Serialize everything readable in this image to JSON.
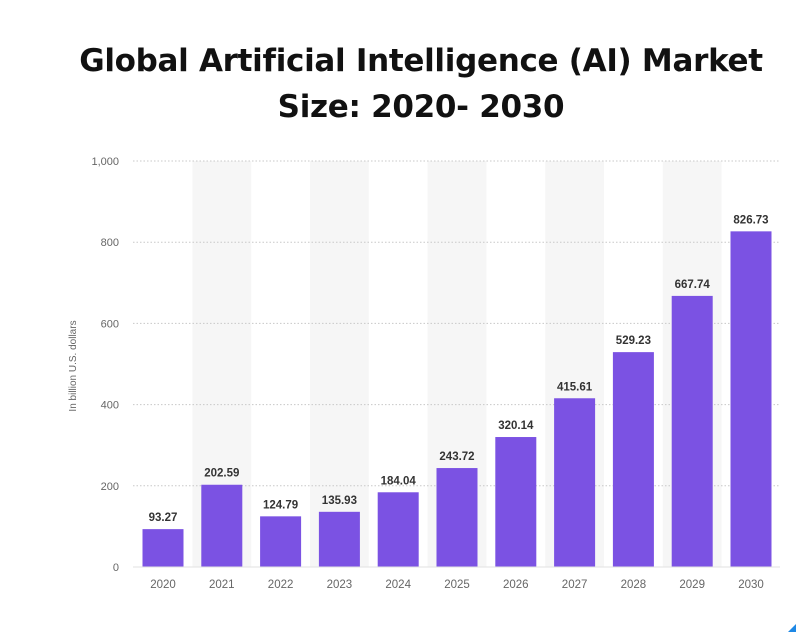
{
  "chart_data": {
    "type": "bar",
    "title_lines": [
      "Global Artificial Intelligence (AI) Market",
      "Size: 2020- 2030"
    ],
    "ylabel": "In billion U.S. dollars",
    "xlabel": "",
    "ylim": [
      0,
      1000
    ],
    "y_ticks": [
      0,
      200,
      400,
      600,
      800,
      1000
    ],
    "y_tick_labels": [
      "0",
      "200",
      "400",
      "600",
      "800",
      "1,000"
    ],
    "categories": [
      "2020",
      "2021",
      "2022",
      "2023",
      "2024",
      "2025",
      "2026",
      "2027",
      "2028",
      "2029",
      "2030"
    ],
    "values": [
      93.27,
      202.59,
      124.79,
      135.93,
      184.04,
      243.72,
      320.14,
      415.61,
      529.23,
      667.74,
      826.73
    ],
    "value_labels": [
      "93.27",
      "202.59",
      "124.79",
      "135.93",
      "184.04",
      "243.72",
      "320.14",
      "415.61",
      "529.23",
      "667.74",
      "826.73"
    ],
    "grid": true,
    "legend": "none"
  },
  "colors": {
    "bar": "#7b52e3",
    "band": "#f6f6f6",
    "grid": "#c8c8c8",
    "axis_text": "#666666",
    "label_text": "#333333",
    "title_text": "#111111",
    "corner_mark": "#1e88e5"
  }
}
